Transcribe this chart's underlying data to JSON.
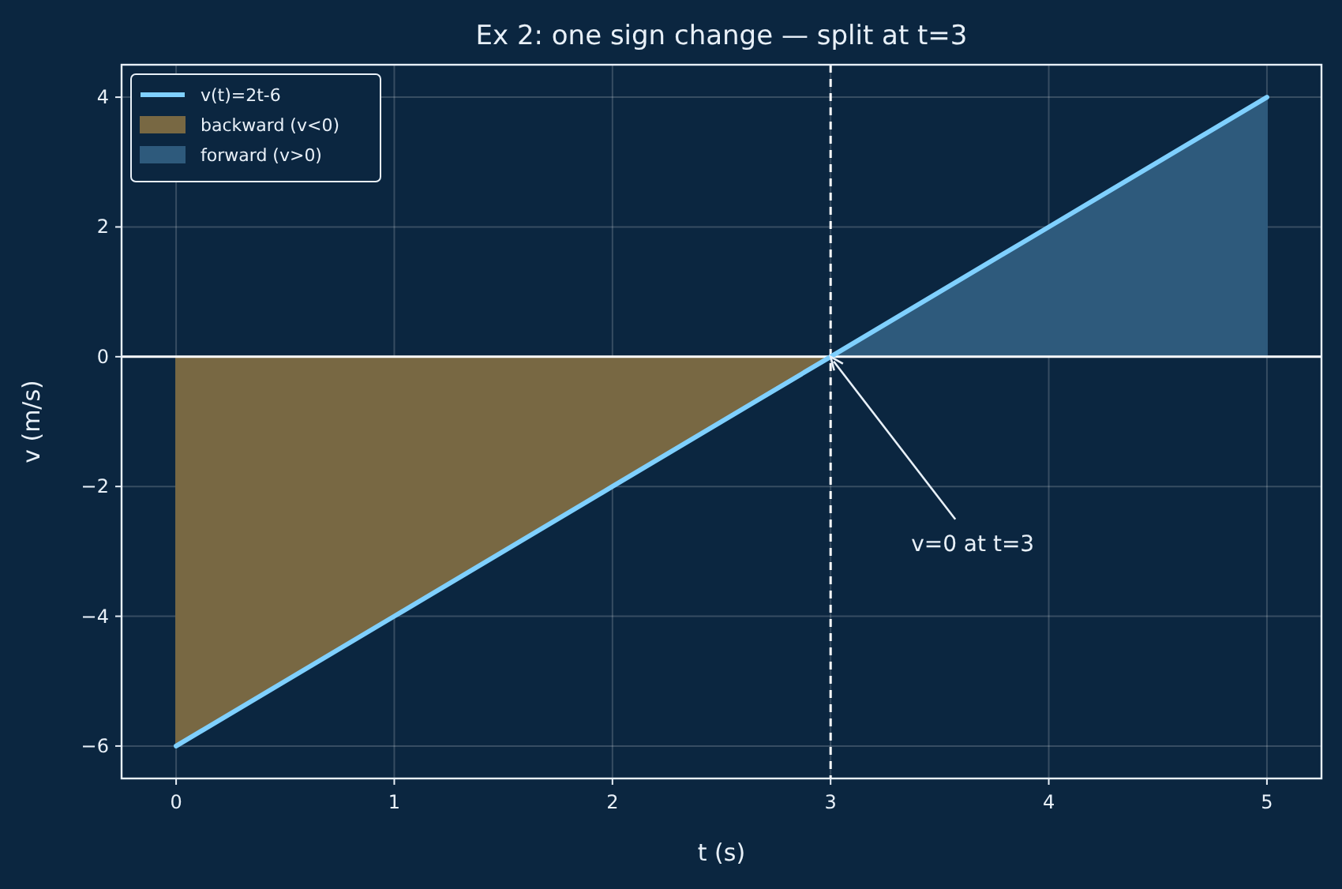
{
  "chart_data": {
    "type": "line",
    "title": "Ex 2: one sign change — split at t=3",
    "xlabel": "t (s)",
    "ylabel": "v (m/s)",
    "series": [
      {
        "name": "v(t)=2t-6",
        "color": "#7fd0ff",
        "x": [
          0,
          1,
          2,
          3,
          4,
          5
        ],
        "values": [
          -6,
          -4,
          -2,
          0,
          2,
          4
        ]
      },
      {
        "name": "backward (v<0)",
        "type": "area",
        "color": "#786843",
        "x": [
          0,
          3
        ],
        "values": [
          -6,
          0
        ]
      },
      {
        "name": "forward (v>0)",
        "type": "area",
        "color": "#2e5a7c",
        "x": [
          3,
          5
        ],
        "values": [
          0,
          4
        ]
      }
    ],
    "xlim": [
      -0.25,
      5.25
    ],
    "xticks": [
      0,
      1,
      2,
      3,
      4,
      5
    ],
    "ylim": [
      -6.5,
      4.5
    ],
    "yticks": [
      -6,
      -4,
      -2,
      0,
      2,
      4
    ],
    "ref_lines": [
      {
        "axis": "y",
        "value": 0,
        "color": "#ffffff",
        "line_style": "solid"
      },
      {
        "axis": "x",
        "value": 3,
        "color": "#ffffff",
        "line_style": "dashed"
      }
    ],
    "annotations": [
      {
        "text": "v=0 at t=3",
        "x": 3,
        "y": 0
      }
    ],
    "grid": true,
    "legend": "top left",
    "line_style": "solid",
    "marker": "none"
  }
}
